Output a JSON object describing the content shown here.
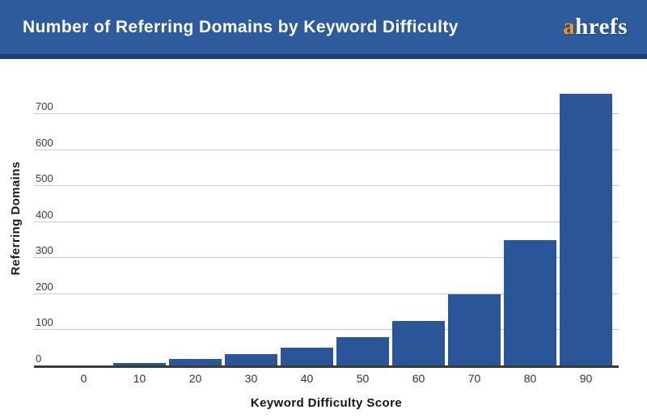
{
  "header": {
    "title": "Number of Referring Domains by Keyword Difficulty",
    "logo_prefix": "a",
    "logo_suffix": "hrefs",
    "bg_color": "#2d5b9e",
    "border_color": "#1e4175",
    "logo_accent_color": "#f7941e"
  },
  "chart_data": {
    "type": "bar",
    "title": "Number of Referring Domains by Keyword Difficulty",
    "categories": [
      "0",
      "10",
      "20",
      "30",
      "40",
      "50",
      "60",
      "70",
      "80",
      "90"
    ],
    "values": [
      0,
      9,
      20,
      34,
      52,
      81,
      126,
      200,
      351,
      756
    ],
    "xlabel": "Keyword Difficulty Score",
    "ylabel": "Referring Domains",
    "ylim": [
      0,
      700
    ],
    "yticks": [
      0,
      100,
      200,
      300,
      400,
      500,
      600,
      700
    ],
    "grid": true,
    "legend": "none",
    "bar_color": "#2a5699",
    "gridline_color": "#c9c9c9",
    "axis_color": "#3a3a3a"
  }
}
